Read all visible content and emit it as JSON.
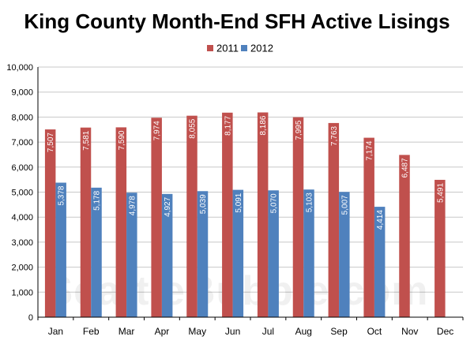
{
  "chart_data": {
    "type": "bar",
    "title": "King County Month-End SFH Active Lisings",
    "categories": [
      "Jan",
      "Feb",
      "Mar",
      "Apr",
      "May",
      "Jun",
      "Jul",
      "Aug",
      "Sep",
      "Oct",
      "Nov",
      "Dec"
    ],
    "series": [
      {
        "name": "2011",
        "color": "#c0504d",
        "values": [
          7507,
          7581,
          7590,
          7974,
          8055,
          8177,
          8186,
          7995,
          7763,
          7174,
          6487,
          5491
        ],
        "labels": [
          "7,507",
          "7,581",
          "7,590",
          "7,974",
          "8,055",
          "8,177",
          "8,186",
          "7,995",
          "7,763",
          "7,174",
          "6,487",
          "5,491"
        ]
      },
      {
        "name": "2012",
        "color": "#4f81bd",
        "values": [
          5378,
          5178,
          4978,
          4927,
          5039,
          5091,
          5070,
          5103,
          5007,
          4414,
          null,
          null
        ],
        "labels": [
          "5,378",
          "5,178",
          "4,978",
          "4,927",
          "5,039",
          "5,091",
          "5,070",
          "5,103",
          "5,007",
          "4,414",
          null,
          null
        ]
      }
    ],
    "ylim": [
      0,
      10000
    ],
    "yticks": [
      0,
      1000,
      2000,
      3000,
      4000,
      5000,
      6000,
      7000,
      8000,
      9000,
      10000
    ],
    "ytick_labels": [
      "0",
      "1,000",
      "2,000",
      "3,000",
      "4,000",
      "5,000",
      "6,000",
      "7,000",
      "8,000",
      "9,000",
      "10,000"
    ],
    "grid": true,
    "legend_position": "top-center",
    "watermark": "SeattleBubble.com"
  }
}
